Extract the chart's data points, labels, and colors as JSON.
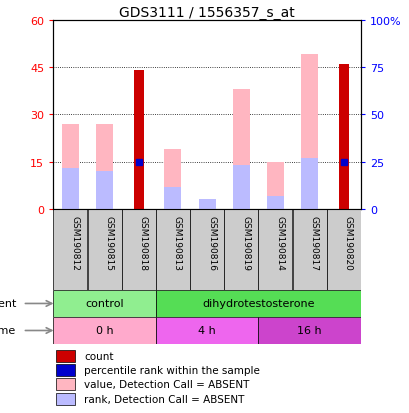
{
  "title": "GDS3111 / 1556357_s_at",
  "samples": [
    "GSM190812",
    "GSM190815",
    "GSM190818",
    "GSM190813",
    "GSM190816",
    "GSM190819",
    "GSM190814",
    "GSM190817",
    "GSM190820"
  ],
  "count_values": [
    0,
    0,
    44,
    0,
    0,
    0,
    0,
    0,
    46
  ],
  "percentile_rank": [
    0,
    0,
    15,
    0,
    0,
    0,
    0,
    0,
    15
  ],
  "pink_value": [
    27,
    27,
    0,
    19,
    0,
    38,
    15,
    49,
    0
  ],
  "pink_rank": [
    13,
    12,
    0,
    7,
    3,
    14,
    4,
    16,
    0
  ],
  "left_yticks": [
    0,
    15,
    30,
    45,
    60
  ],
  "right_yticks": [
    0,
    25,
    50,
    75,
    100
  ],
  "ylim_left": [
    0,
    60
  ],
  "ylim_right": [
    0,
    100
  ],
  "agent_groups": [
    {
      "label": "control",
      "start": 0,
      "end": 3,
      "color": "#90EE90"
    },
    {
      "label": "dihydrotestosterone",
      "start": 3,
      "end": 9,
      "color": "#55DD55"
    }
  ],
  "time_groups": [
    {
      "label": "0 h",
      "start": 0,
      "end": 3,
      "color": "#FFAACC"
    },
    {
      "label": "4 h",
      "start": 3,
      "end": 6,
      "color": "#EE66EE"
    },
    {
      "label": "16 h",
      "start": 6,
      "end": 9,
      "color": "#CC44CC"
    }
  ],
  "color_count": "#CC0000",
  "color_percentile": "#0000CC",
  "color_value_absent": "#FFB6C1",
  "color_rank_absent": "#BBBBFF",
  "title_fontsize": 10
}
